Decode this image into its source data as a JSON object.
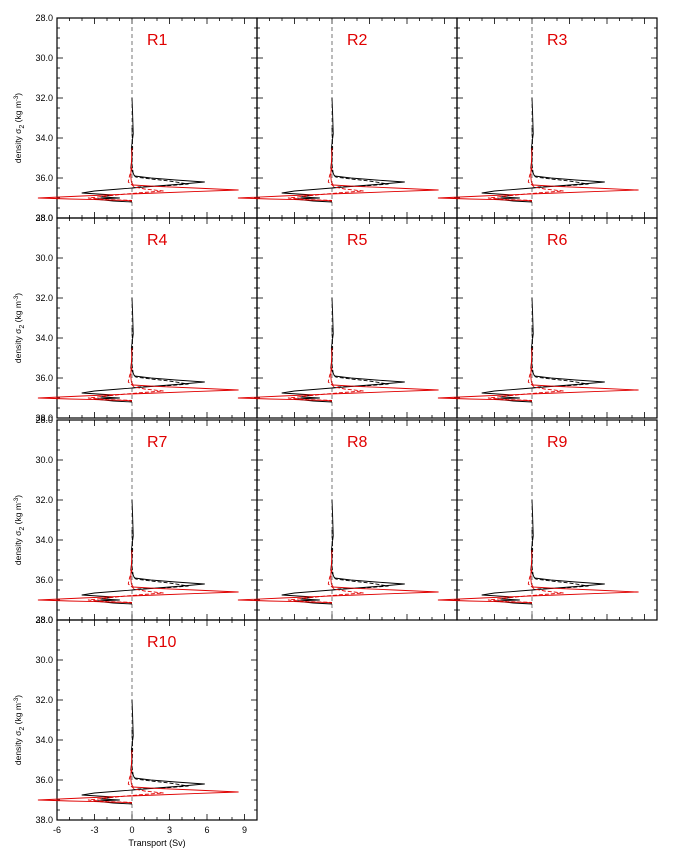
{
  "chart_data": {
    "type": "line",
    "title": "",
    "ylabel_main": "density σ",
    "ylabel_sub": "2",
    "ylabel_unit_open": " (kg m",
    "ylabel_unit_sup": "-3",
    "ylabel_unit_close": ")",
    "xlabel": "Transport (Sv)",
    "xlim": [
      -6,
      10
    ],
    "ylim": [
      28.0,
      38.0
    ],
    "y_inverted": true,
    "y_ticks": [
      28.0,
      30.0,
      32.0,
      34.0,
      36.0,
      38.0
    ],
    "y_tick_labels": [
      "28.0",
      "30.0",
      "32.0",
      "34.0",
      "36.0",
      "38.0"
    ],
    "x_ticks": [
      -6,
      -3,
      0,
      3,
      6,
      9
    ],
    "x_tick_labels": [
      "-6",
      "-3",
      "0",
      "3",
      "6",
      "9"
    ],
    "colors": {
      "black": "#000000",
      "red": "#e00000",
      "zero_line": "#555555",
      "label": "#e00000"
    },
    "panels": [
      {
        "label": "R1"
      },
      {
        "label": "R2"
      },
      {
        "label": "R3"
      },
      {
        "label": "R4"
      },
      {
        "label": "R5"
      },
      {
        "label": "R6"
      },
      {
        "label": "R7"
      },
      {
        "label": "R8"
      },
      {
        "label": "R9"
      },
      {
        "label": "R10"
      }
    ],
    "series": [
      {
        "name": "",
        "color": "#000000",
        "dash": "solid",
        "x": [
          0,
          0.05,
          0.1,
          -0.05,
          0.0,
          -0.1,
          0.2,
          1.5,
          3.5,
          5.8,
          4.0,
          1.0,
          -1.0,
          -3.0,
          -4.0,
          -1.5,
          -2.5,
          -1.0,
          -3.0,
          -1.5,
          0
        ],
        "y": [
          32.0,
          32.8,
          33.8,
          34.5,
          35.0,
          35.5,
          35.9,
          36.0,
          36.1,
          36.2,
          36.3,
          36.45,
          36.55,
          36.65,
          36.75,
          36.85,
          36.95,
          37.0,
          37.05,
          37.15,
          37.2
        ]
      },
      {
        "name": "",
        "color": "#000000",
        "dash": "dashed",
        "x": [
          0.0,
          0.05,
          0.0,
          0.1,
          0.3,
          1.5,
          3.0,
          4.5,
          3.0,
          1.5,
          0.5,
          0.0
        ],
        "y": [
          33.5,
          34.5,
          35.3,
          35.8,
          35.95,
          36.05,
          36.15,
          36.3,
          36.38,
          36.42,
          36.45,
          36.5
        ]
      },
      {
        "name": "",
        "color": "#e00000",
        "dash": "solid",
        "x": [
          0,
          -0.05,
          -0.1,
          -0.05,
          0.1,
          2.0,
          5.0,
          8.5,
          5.0,
          2.0,
          -1.0,
          -4.0,
          -7.5,
          -5.0,
          -3.0,
          -2.0,
          -0.5,
          0
        ],
        "y": [
          34.5,
          35.3,
          35.9,
          36.2,
          36.35,
          36.42,
          36.5,
          36.6,
          36.68,
          36.75,
          36.82,
          36.9,
          37.0,
          37.05,
          37.08,
          37.1,
          37.12,
          37.15
        ]
      },
      {
        "name": "",
        "color": "#e00000",
        "dash": "dashed",
        "x": [
          0,
          -0.2,
          -0.3,
          0.2,
          1.0,
          2.5,
          1.0,
          -0.5,
          -2.0,
          -3.5,
          -2.0,
          0
        ],
        "y": [
          35.5,
          35.9,
          36.2,
          36.45,
          36.55,
          36.65,
          36.72,
          36.8,
          36.9,
          37.0,
          37.08,
          37.12
        ]
      }
    ]
  }
}
